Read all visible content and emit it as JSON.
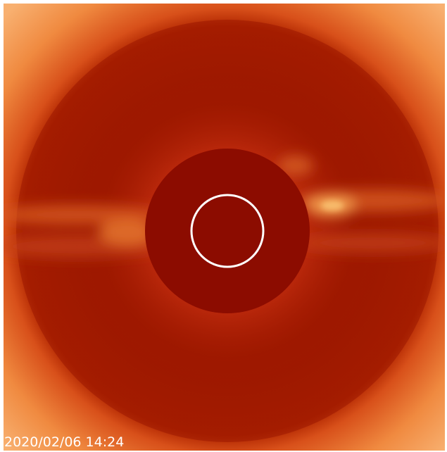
{
  "image": {
    "timestamp": "2020/02/06 14:24"
  }
}
